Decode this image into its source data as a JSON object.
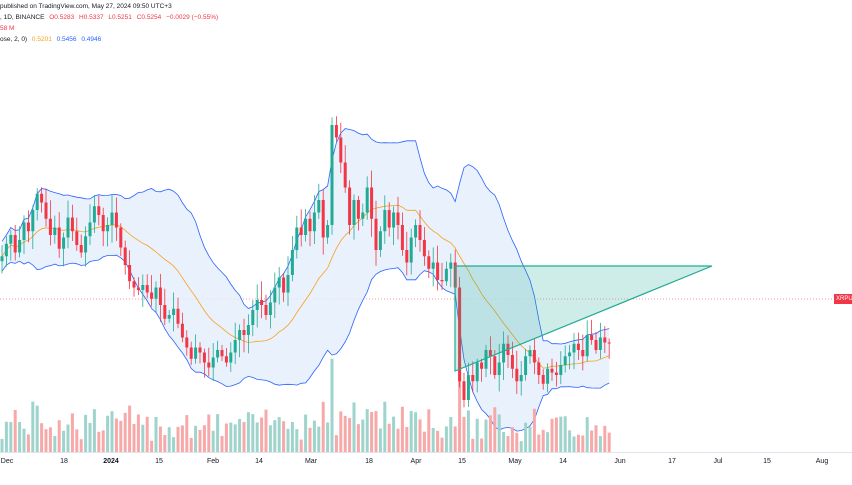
{
  "header": {
    "line1": "published on TradingView.com, May 27, 2024 09:50 UTC+3",
    "line2": {
      "symbol": ", 1D, BINANCE",
      "open": "O0.5283",
      "high": "H0.5337",
      "low": "L0.5251",
      "close": "C0.5254",
      "change": "−0.0029 (−0.55%)"
    },
    "line3": "58 M",
    "line4": {
      "label": "ose, 2, 0)",
      "basis": "0.5201",
      "upper": "0.5456",
      "lower": "0.4946"
    }
  },
  "price_tag": {
    "label": "XRPU"
  },
  "colors": {
    "up": "#22ab94",
    "down": "#f23645",
    "vol_up": "#9fd4cc",
    "vol_down": "#f7a9a9",
    "band": "#2962ff",
    "band_fill": "#e3eefb",
    "basis": "#f7a21b",
    "triangle": "#22ab94"
  },
  "chart_data": {
    "type": "candlestick",
    "indicator": "Bollinger Bands (close, 2, 0)",
    "x_axis_labels": [
      {
        "label": "Dec",
        "bold": false
      },
      {
        "label": "18",
        "bold": false
      },
      {
        "label": "2024",
        "bold": true
      },
      {
        "label": "15",
        "bold": false
      },
      {
        "label": "Feb",
        "bold": false
      },
      {
        "label": "14",
        "bold": false
      },
      {
        "label": "Mar",
        "bold": false
      },
      {
        "label": "18",
        "bold": false
      },
      {
        "label": "Apr",
        "bold": false
      },
      {
        "label": "15",
        "bold": false
      },
      {
        "label": "May",
        "bold": false
      },
      {
        "label": "14",
        "bold": false
      },
      {
        "label": "Jun",
        "bold": false
      },
      {
        "label": "17",
        "bold": false
      },
      {
        "label": "Jul",
        "bold": false
      },
      {
        "label": "15",
        "bold": false
      },
      {
        "label": "Aug",
        "bold": false
      }
    ],
    "last_close": 0.5254,
    "y_range": [
      0.4,
      0.8
    ],
    "close": [
      0.595,
      0.605,
      0.612,
      0.598,
      0.608,
      0.622,
      0.615,
      0.632,
      0.645,
      0.638,
      0.625,
      0.612,
      0.618,
      0.601,
      0.61,
      0.626,
      0.615,
      0.604,
      0.598,
      0.611,
      0.622,
      0.635,
      0.628,
      0.615,
      0.62,
      0.63,
      0.618,
      0.602,
      0.588,
      0.575,
      0.57,
      0.568,
      0.572,
      0.566,
      0.561,
      0.57,
      0.556,
      0.545,
      0.548,
      0.553,
      0.541,
      0.53,
      0.522,
      0.513,
      0.522,
      0.518,
      0.51,
      0.506,
      0.514,
      0.52,
      0.515,
      0.51,
      0.518,
      0.528,
      0.536,
      0.532,
      0.54,
      0.552,
      0.56,
      0.556,
      0.548,
      0.558,
      0.57,
      0.578,
      0.566,
      0.58,
      0.6,
      0.618,
      0.612,
      0.625,
      0.615,
      0.63,
      0.64,
      0.61,
      0.62,
      0.7,
      0.69,
      0.67,
      0.65,
      0.62,
      0.64,
      0.625,
      0.63,
      0.65,
      0.625,
      0.6,
      0.615,
      0.632,
      0.618,
      0.63,
      0.62,
      0.6,
      0.59,
      0.61,
      0.62,
      0.608,
      0.595,
      0.585,
      0.59,
      0.576,
      0.575,
      0.585,
      0.59,
      0.57,
      0.495,
      0.48,
      0.5,
      0.495,
      0.51,
      0.505,
      0.52,
      0.515,
      0.5,
      0.51,
      0.525,
      0.516,
      0.505,
      0.495,
      0.5,
      0.515,
      0.52,
      0.51,
      0.5,
      0.493,
      0.505,
      0.502,
      0.5,
      0.508,
      0.515,
      0.518,
      0.525,
      0.52,
      0.515,
      0.532,
      0.528,
      0.52,
      0.53,
      0.526,
      0.5254
    ]
  }
}
